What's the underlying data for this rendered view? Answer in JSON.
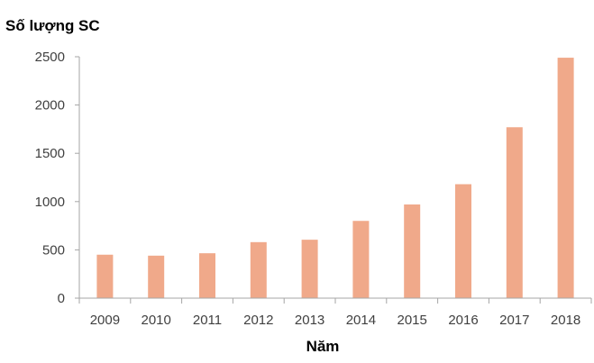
{
  "chart_data": {
    "type": "bar",
    "title": "",
    "ylabel": "Số lượng SC",
    "xlabel": "Năm",
    "categories": [
      "2009",
      "2010",
      "2011",
      "2012",
      "2013",
      "2014",
      "2015",
      "2016",
      "2017",
      "2018"
    ],
    "values": [
      450,
      440,
      465,
      580,
      605,
      800,
      970,
      1180,
      1770,
      2490
    ],
    "ylim": [
      0,
      2500
    ],
    "yticks": [
      "0",
      "500",
      "1000",
      "1500",
      "2000",
      "2500"
    ],
    "bar_color": "#f0a98a",
    "grid": false,
    "legend": "none"
  }
}
